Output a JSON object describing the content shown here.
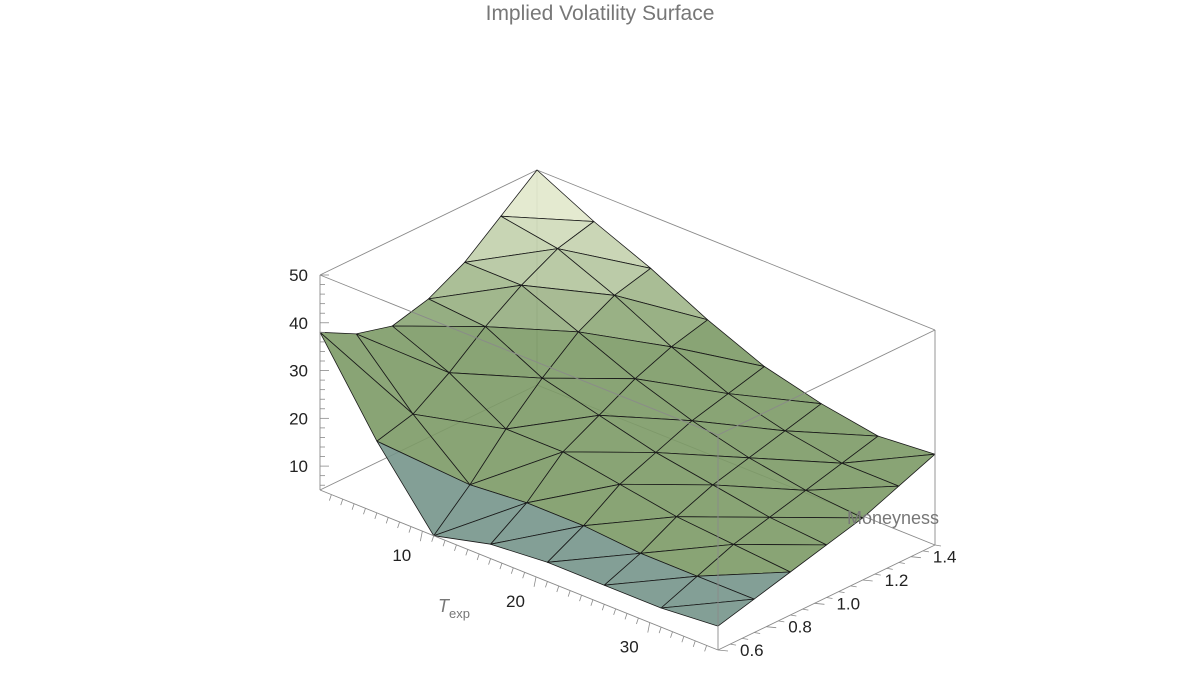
{
  "chart_data": {
    "type": "surface3d",
    "title": "Implied Volatility Surface",
    "x_axis": {
      "label": "T",
      "label_sub": "exp",
      "range": [
        1,
        36
      ],
      "ticks": [
        10,
        20,
        30
      ]
    },
    "y_axis": {
      "label": "Moneyness",
      "range": [
        0.6,
        1.5
      ],
      "ticks": [
        "0.6",
        "0.8",
        "1.0",
        "1.2",
        "1.4"
      ]
    },
    "z_axis": {
      "label": "",
      "range": [
        5,
        50
      ],
      "ticks": [
        10,
        20,
        30,
        40,
        50
      ]
    },
    "grid": false,
    "colors": {
      "surface_green": "#7c9a66",
      "surface_light": "#eef2d8",
      "surface_blue": "#6f8fb0",
      "mesh": "#1a1a1a",
      "box": "#8a8a8a"
    },
    "t_values": [
      1,
      6,
      11,
      16,
      21,
      26,
      31,
      36
    ],
    "moneyness_values": [
      0.6,
      0.75,
      0.9,
      1.05,
      1.2,
      1.35,
      1.5
    ],
    "iv_values": [
      [
        38,
        34,
        32,
        34,
        38,
        44,
        50
      ],
      [
        20,
        22,
        27,
        33,
        38,
        42,
        44
      ],
      [
        5,
        12,
        20,
        27,
        33,
        37,
        39
      ],
      [
        8,
        13,
        20,
        24,
        28,
        31,
        33
      ],
      [
        9,
        13,
        18,
        21,
        24,
        26,
        28
      ],
      [
        9,
        12,
        16,
        19,
        21,
        23,
        25
      ],
      [
        9,
        12,
        15,
        17,
        19,
        21,
        23
      ],
      [
        10,
        12,
        14,
        16,
        18,
        21,
        24
      ]
    ]
  }
}
